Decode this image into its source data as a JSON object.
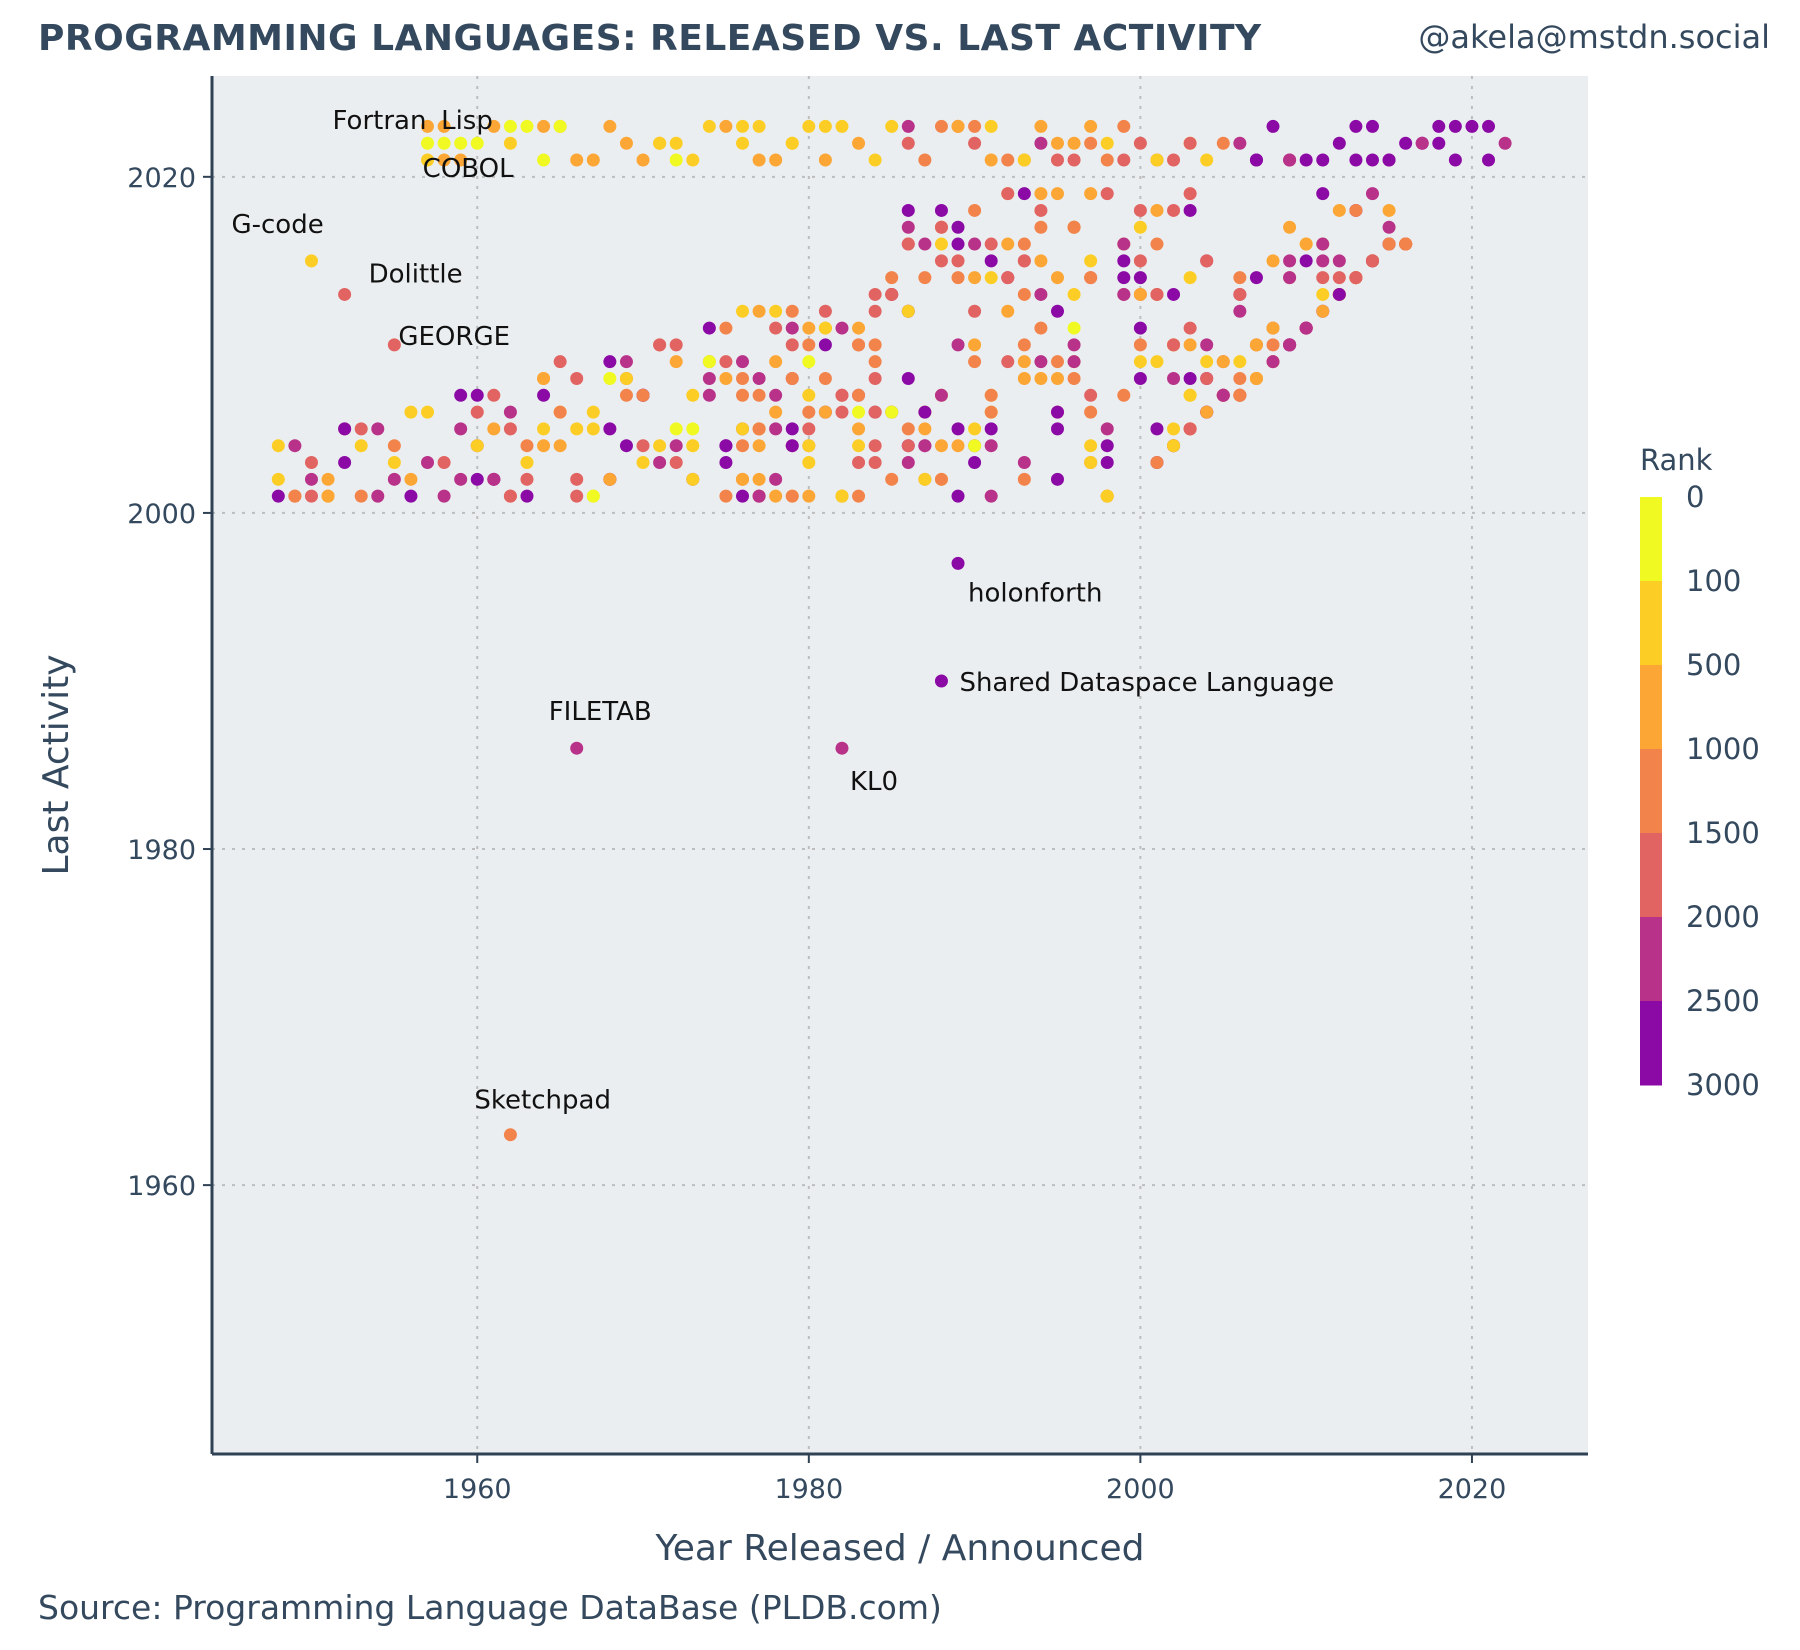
{
  "header": {
    "title": "PROGRAMMING LANGUAGES: RELEASED VS. LAST ACTIVITY",
    "handle": "@akela@mstdn.social"
  },
  "footer": {
    "source": "Source: Programming Language DataBase (PLDB.com)"
  },
  "chart_data": {
    "type": "scatter",
    "title": "PROGRAMMING LANGUAGES: RELEASED VS. LAST ACTIVITY",
    "xlabel": "Year Released / Announced",
    "ylabel": "Last Activity",
    "xlim": [
      1944,
      2027
    ],
    "ylim": [
      1944,
      2026
    ],
    "xticks": [
      1960,
      1980,
      2000,
      2020
    ],
    "yticks": [
      1960,
      1980,
      2000,
      2020
    ],
    "grid": true,
    "legend": {
      "title": "Rank",
      "placement": "right",
      "breaks": [
        0,
        100,
        500,
        1000,
        1500,
        2000,
        2500,
        3000
      ],
      "colors": [
        "#f0f921",
        "#fcce25",
        "#fca636",
        "#f2844b",
        "#e16462",
        "#b83289",
        "#8b0aa5",
        "#5302a3",
        "#0d0887"
      ]
    },
    "colors": {
      "panel_background": "#ebeef0",
      "gridline": "#bdbdbd",
      "axis_line": "#2f4154"
    },
    "labeled_points": [
      {
        "name": "Fortran",
        "x": 1957,
        "y": 2022,
        "rank": 20
      },
      {
        "name": "Lisp",
        "x": 1958,
        "y": 2022,
        "rank": 40
      },
      {
        "name": "COBOL",
        "x": 1959,
        "y": 2022,
        "rank": 60
      },
      {
        "name": "G-code",
        "x": 1950,
        "y": 2015,
        "rank": 300
      },
      {
        "name": "Dolittle",
        "x": 1952,
        "y": 2013,
        "rank": 1700
      },
      {
        "name": "GEORGE",
        "x": 1955,
        "y": 2010,
        "rank": 1700
      },
      {
        "name": "holonforth",
        "x": 1989,
        "y": 1997,
        "rank": 2800
      },
      {
        "name": "Shared Dataspace Language",
        "x": 1988,
        "y": 1990,
        "rank": 2800
      },
      {
        "name": "FILETAB",
        "x": 1966,
        "y": 1986,
        "rank": 2200
      },
      {
        "name": "KL0",
        "x": 1982,
        "y": 1986,
        "rank": 2000
      },
      {
        "name": "Sketchpad",
        "x": 1962,
        "y": 1963,
        "rank": 1200
      }
    ],
    "point_clusters": [
      {
        "description": "active languages, last activity 2022-2023",
        "x_range": [
          1957,
          2022
        ],
        "y_range": [
          2021,
          2023
        ]
      },
      {
        "description": "languages with last activity 2001-2019",
        "x_range": [
          1948,
          2016
        ],
        "y_range": [
          2001,
          2019
        ]
      }
    ]
  }
}
